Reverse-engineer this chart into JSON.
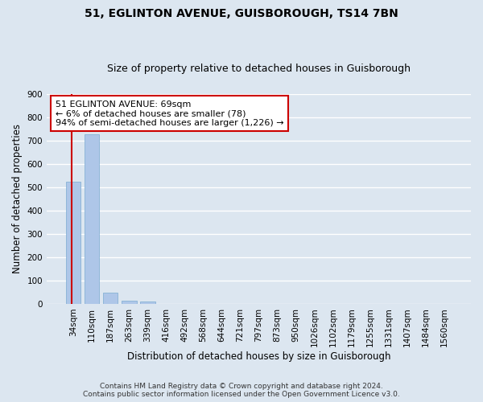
{
  "title": "51, EGLINTON AVENUE, GUISBOROUGH, TS14 7BN",
  "subtitle": "Size of property relative to detached houses in Guisborough",
  "xlabel": "Distribution of detached houses by size in Guisborough",
  "ylabel": "Number of detached properties",
  "categories": [
    "34sqm",
    "110sqm",
    "187sqm",
    "263sqm",
    "339sqm",
    "416sqm",
    "492sqm",
    "568sqm",
    "644sqm",
    "721sqm",
    "797sqm",
    "873sqm",
    "950sqm",
    "1026sqm",
    "1102sqm",
    "1179sqm",
    "1255sqm",
    "1331sqm",
    "1407sqm",
    "1484sqm",
    "1560sqm"
  ],
  "values": [
    525,
    727,
    48,
    12,
    10,
    0,
    0,
    0,
    0,
    0,
    0,
    0,
    0,
    0,
    0,
    0,
    0,
    0,
    0,
    0,
    0
  ],
  "bar_color": "#aec6e8",
  "bar_edge_color": "#7aaad0",
  "annotation_line1": "51 EGLINTON AVENUE: 69sqm",
  "annotation_line2": "← 6% of detached houses are smaller (78)",
  "annotation_line3": "94% of semi-detached houses are larger (1,226) →",
  "annotation_box_color": "#ffffff",
  "annotation_box_edge_color": "#cc0000",
  "property_line_color": "#cc0000",
  "property_line_x": -0.1,
  "background_color": "#dce6f0",
  "grid_color": "#ffffff",
  "footer_line1": "Contains HM Land Registry data © Crown copyright and database right 2024.",
  "footer_line2": "Contains public sector information licensed under the Open Government Licence v3.0.",
  "ylim": [
    0,
    900
  ],
  "yticks": [
    0,
    100,
    200,
    300,
    400,
    500,
    600,
    700,
    800,
    900
  ],
  "title_fontsize": 10,
  "subtitle_fontsize": 9,
  "ylabel_fontsize": 8.5,
  "xlabel_fontsize": 8.5,
  "tick_fontsize": 7.5,
  "footer_fontsize": 6.5,
  "ann_fontsize": 8
}
